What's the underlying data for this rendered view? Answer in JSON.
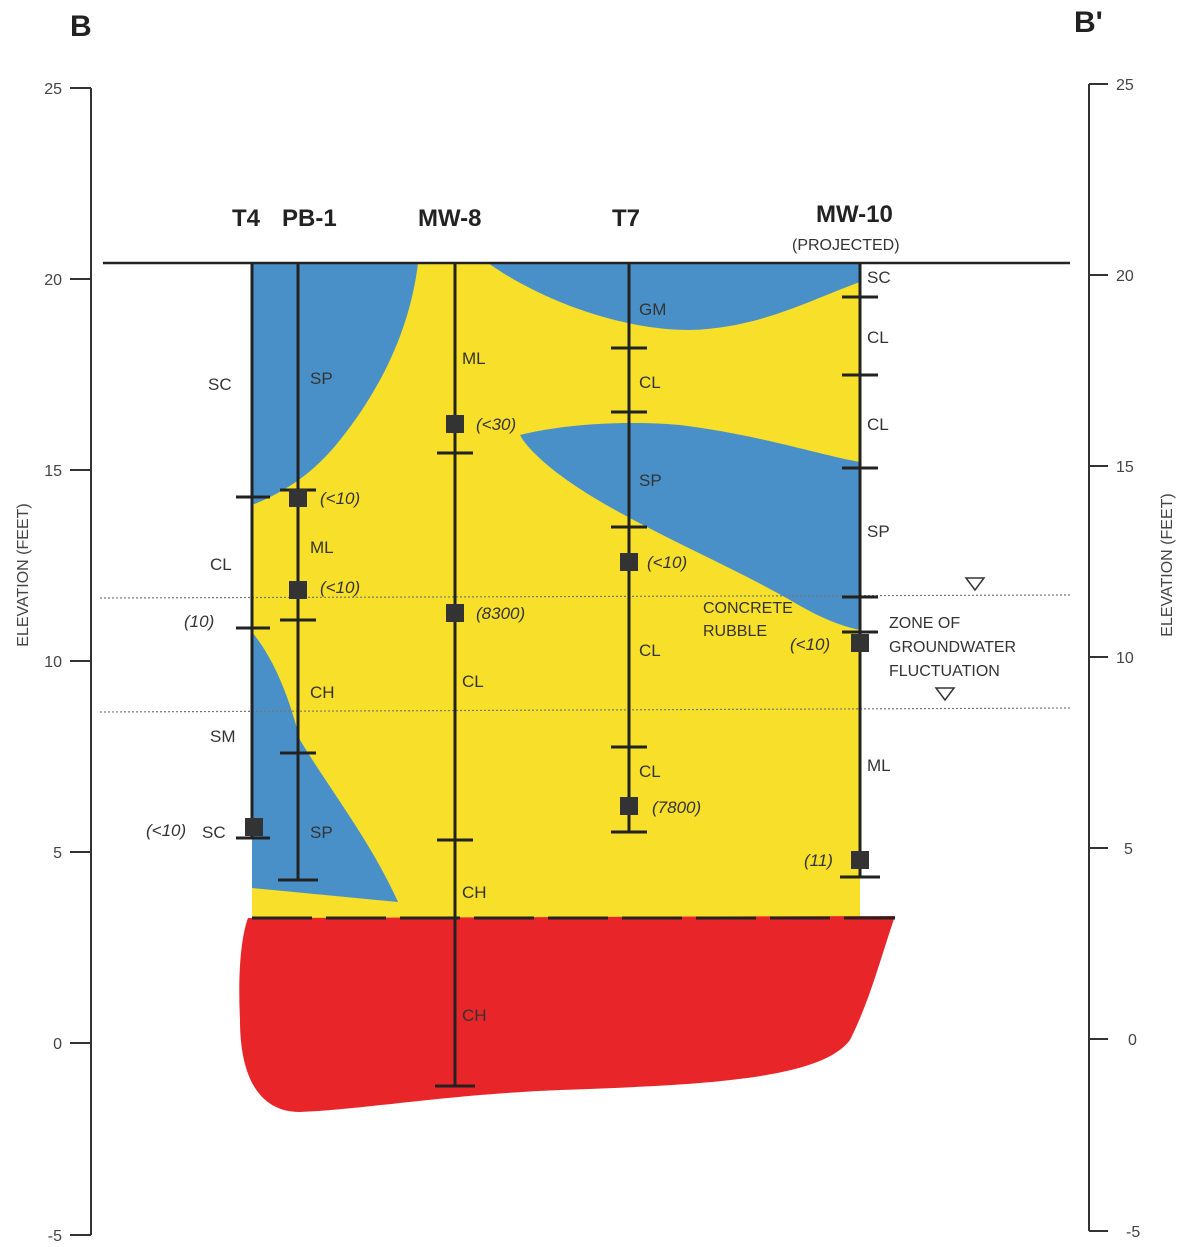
{
  "section": {
    "left_label": "B",
    "right_label": "B'"
  },
  "axis": {
    "title": "ELEVATION (FEET)",
    "ticks": [
      "25",
      "20",
      "15",
      "10",
      "5",
      "0",
      "-5"
    ]
  },
  "borings": {
    "t4": "T4",
    "pb1": "PB-1",
    "mw8": "MW-8",
    "t7": "T7",
    "mw10": "MW-10",
    "mw10_note": "(PROJECTED)"
  },
  "soil_labels": {
    "t4_sc_top": "SC",
    "t4_cl": "CL",
    "t4_sm": "SM",
    "t4_sc_bottom": "SC",
    "pb1_sp_top": "SP",
    "pb1_ml": "ML",
    "pb1_ch": "CH",
    "pb1_sp_bottom": "SP",
    "mw8_ml": "ML",
    "mw8_cl": "CL",
    "mw8_ch": "CH",
    "mw8_ch_deep": "CH",
    "t7_gm": "GM",
    "t7_cl_1": "CL",
    "t7_sp": "SP",
    "t7_cl_2": "CL",
    "t7_cl_3": "CL",
    "mw10_sc": "SC",
    "mw10_cl_1": "CL",
    "mw10_cl_2": "CL",
    "mw10_sp": "SP",
    "mw10_ml": "ML"
  },
  "concentrations": {
    "t4_1": "(10)",
    "t4_2": "(<10)",
    "pb1_1": "(<10)",
    "pb1_2": "(<10)",
    "mw8_1": "(<30)",
    "mw8_2": "(8300)",
    "t7_1": "(<10)",
    "t7_2": "(7800)",
    "mw10_1": "(<10)",
    "mw10_2": "(11)"
  },
  "annotations": {
    "concrete_line1": "CONCRETE",
    "concrete_line2": "RUBBLE",
    "zone_line1": "ZONE OF",
    "zone_line2": "GROUNDWATER",
    "zone_line3": "FLUCTUATION"
  },
  "colors": {
    "sand": "#4a90c8",
    "silt_clay": "#f7df2a",
    "fat_clay": "#e8262a",
    "line": "#333333"
  }
}
